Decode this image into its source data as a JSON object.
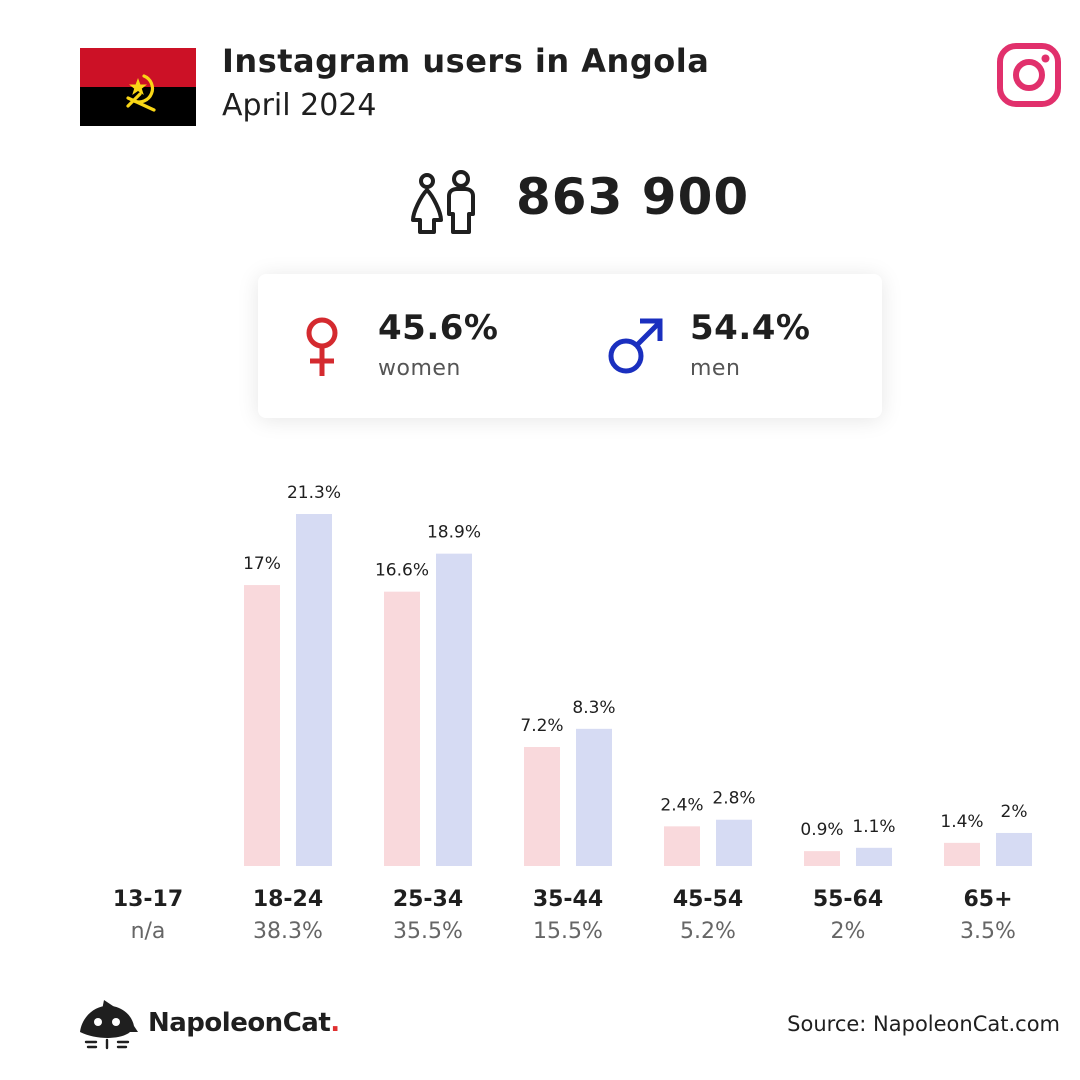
{
  "header": {
    "title": "Instagram users in Angola",
    "subtitle": "April 2024"
  },
  "total_users": "863 900",
  "gender": {
    "women_pct": "45.6%",
    "women_label": "women",
    "men_pct": "54.4%",
    "men_label": "men"
  },
  "colors": {
    "women_bar": "#f9d9dc",
    "men_bar": "#d6dbf3",
    "women_symbol": "#d42a2f",
    "men_symbol": "#1a2fbf",
    "instagram": "#e1306c",
    "flag_red": "#cc1126",
    "flag_black": "#000000",
    "flag_emblem": "#f9d616"
  },
  "chart_data": {
    "type": "bar",
    "categories": [
      "13-17",
      "18-24",
      "25-34",
      "35-44",
      "45-54",
      "55-64",
      "65+"
    ],
    "category_totals": [
      "n/a",
      "38.3%",
      "35.5%",
      "15.5%",
      "5.2%",
      "2%",
      "3.5%"
    ],
    "series": [
      {
        "name": "women",
        "values": [
          null,
          17,
          16.6,
          7.2,
          2.4,
          0.9,
          1.4
        ],
        "labels": [
          "",
          "17%",
          "16.6%",
          "7.2%",
          "2.4%",
          "0.9%",
          "1.4%"
        ]
      },
      {
        "name": "men",
        "values": [
          null,
          21.3,
          18.9,
          8.3,
          2.8,
          1.1,
          2
        ],
        "labels": [
          "",
          "21.3%",
          "18.9%",
          "8.3%",
          "2.8%",
          "1.1%",
          "2%"
        ]
      }
    ],
    "ylim": [
      0,
      21.3
    ],
    "grid": false
  },
  "footer": {
    "brand": "NapoleonCat",
    "brand_dot": ".",
    "source": "Source: NapoleonCat.com"
  }
}
